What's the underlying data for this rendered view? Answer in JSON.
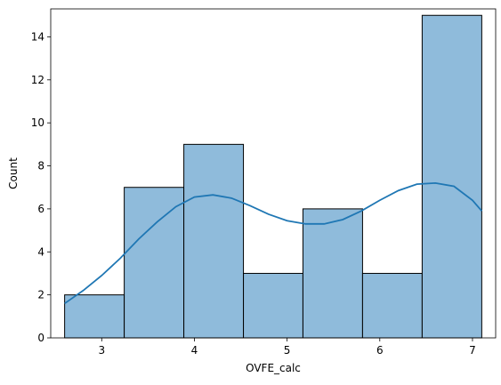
{
  "chart_data": {
    "type": "bar",
    "title": "",
    "xlabel": "OVFE_calc",
    "ylabel": "Count",
    "xlim": [
      2.45,
      7.25
    ],
    "ylim": [
      0,
      15.3
    ],
    "xticks": [
      3,
      4,
      5,
      6,
      7
    ],
    "yticks": [
      0,
      2,
      4,
      6,
      8,
      10,
      12,
      14
    ],
    "bin_edges": [
      2.6,
      3.243,
      3.886,
      4.529,
      5.171,
      5.814,
      6.457,
      7.1
    ],
    "values": [
      2,
      7,
      9,
      3,
      6,
      3,
      15
    ],
    "bar_color": "#8fbbdb",
    "edge_color": "#000000",
    "kde": {
      "color": "#1f77b4",
      "x": [
        2.6,
        2.8,
        3.0,
        3.2,
        3.4,
        3.6,
        3.8,
        4.0,
        4.2,
        4.4,
        4.6,
        4.8,
        5.0,
        5.2,
        5.4,
        5.6,
        5.8,
        6.0,
        6.2,
        6.4,
        6.6,
        6.8,
        7.0,
        7.1
      ],
      "y": [
        1.6,
        2.2,
        2.9,
        3.7,
        4.6,
        5.4,
        6.1,
        6.55,
        6.65,
        6.5,
        6.15,
        5.75,
        5.45,
        5.3,
        5.3,
        5.5,
        5.9,
        6.4,
        6.85,
        7.15,
        7.2,
        7.05,
        6.4,
        5.9
      ]
    },
    "grid": false,
    "legend": "none"
  }
}
